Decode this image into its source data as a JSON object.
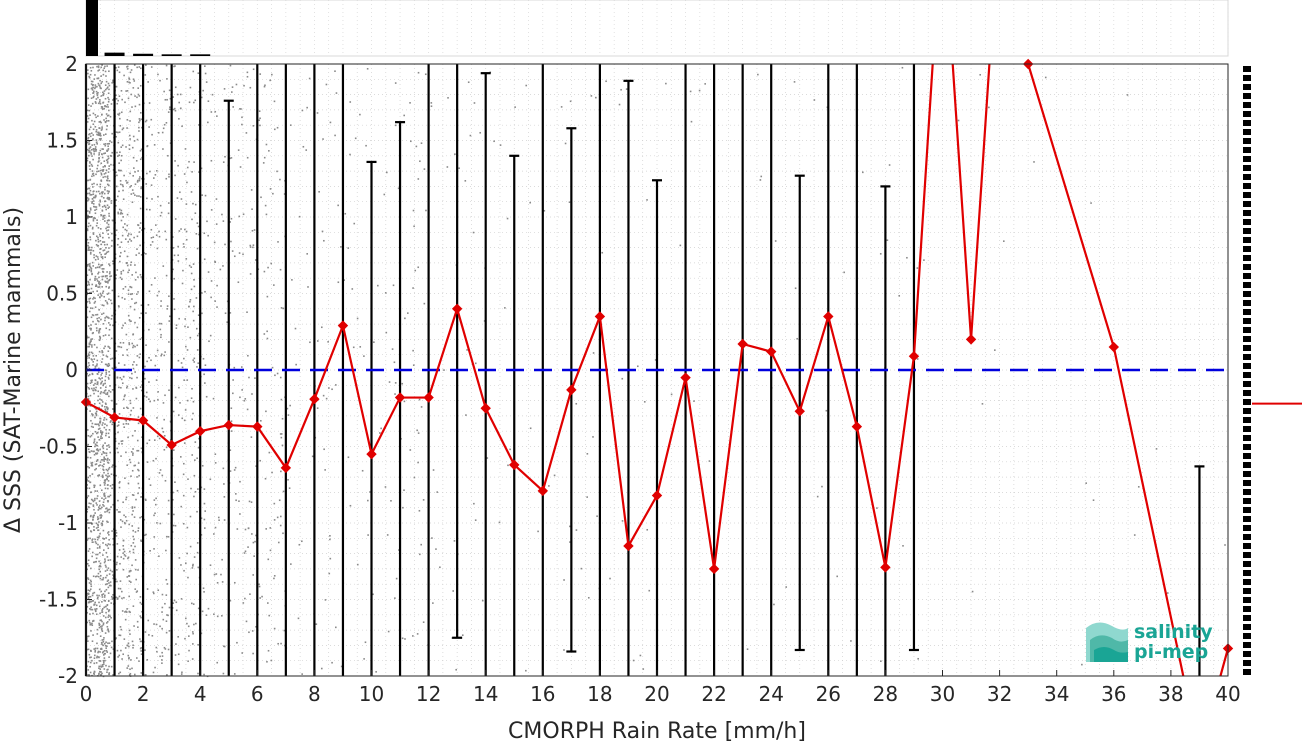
{
  "chart_data": {
    "type": "line",
    "xlabel": "CMORPH Rain Rate [mm/h]",
    "ylabel": "Δ SSS (SAT-Marine mammals)",
    "xlim": [
      0,
      40
    ],
    "ylim": [
      -2,
      2
    ],
    "xticks": [
      "0",
      "2",
      "4",
      "6",
      "8",
      "10",
      "12",
      "14",
      "16",
      "18",
      "20",
      "22",
      "24",
      "26",
      "28",
      "30",
      "32",
      "34",
      "36",
      "38",
      "40"
    ],
    "yticks": [
      "2",
      "1.5",
      "1",
      "0.5",
      "0",
      "-0.5",
      "-1",
      "-1.5",
      "-2"
    ],
    "grid": true,
    "reference_line": {
      "y": 0,
      "style": "dashed",
      "color": "#0000dd"
    },
    "series": [
      {
        "style": "line-diamond",
        "color": "#e00000",
        "x": [
          0,
          1,
          2,
          3,
          4,
          5,
          6,
          7,
          8,
          9,
          10,
          11,
          12,
          13,
          14,
          15,
          16,
          17,
          18,
          19,
          20,
          21,
          22,
          23,
          24,
          25,
          26,
          27,
          28,
          29,
          30,
          31,
          32,
          33,
          36,
          39,
          40
        ],
        "y": [
          -0.21,
          -0.31,
          -0.33,
          -0.49,
          -0.4,
          -0.36,
          -0.37,
          -0.64,
          -0.19,
          0.29,
          -0.55,
          -0.18,
          -0.18,
          0.4,
          -0.25,
          -0.62,
          -0.79,
          -0.13,
          0.35,
          -1.15,
          -0.82,
          -0.05,
          -1.3,
          0.17,
          0.12,
          -0.27,
          0.35,
          -0.37,
          -1.29,
          0.09,
          3.0,
          0.2,
          3.0,
          2.0,
          0.15,
          -2.5,
          -1.82
        ]
      }
    ],
    "error_bars": [
      {
        "x": 0,
        "low": -2,
        "high": 2
      },
      {
        "x": 1,
        "low": -2,
        "high": 2
      },
      {
        "x": 2,
        "low": -2,
        "high": 2
      },
      {
        "x": 3,
        "low": -2,
        "high": 2
      },
      {
        "x": 4,
        "low": -2,
        "high": 2
      },
      {
        "x": 5,
        "low": -2,
        "high": 1.76
      },
      {
        "x": 6,
        "low": -2,
        "high": 2
      },
      {
        "x": 7,
        "low": -2,
        "high": 2
      },
      {
        "x": 8,
        "low": -2,
        "high": 2
      },
      {
        "x": 9,
        "low": -2,
        "high": 2
      },
      {
        "x": 10,
        "low": -2,
        "high": 1.36
      },
      {
        "x": 11,
        "low": -2,
        "high": 1.62
      },
      {
        "x": 12,
        "low": -2,
        "high": 2
      },
      {
        "x": 13,
        "low": -1.75,
        "high": 2
      },
      {
        "x": 14,
        "low": -2,
        "high": 1.94
      },
      {
        "x": 15,
        "low": -2,
        "high": 1.4
      },
      {
        "x": 16,
        "low": -2,
        "high": 2
      },
      {
        "x": 17,
        "low": -1.84,
        "high": 1.58
      },
      {
        "x": 18,
        "low": -2,
        "high": 2
      },
      {
        "x": 19,
        "low": -2,
        "high": 1.89
      },
      {
        "x": 20,
        "low": -2,
        "high": 1.24
      },
      {
        "x": 21,
        "low": -2,
        "high": 2
      },
      {
        "x": 22,
        "low": -2,
        "high": 2
      },
      {
        "x": 23,
        "low": -2,
        "high": 2
      },
      {
        "x": 24,
        "low": -2,
        "high": 2
      },
      {
        "x": 25,
        "low": -1.83,
        "high": 1.27
      },
      {
        "x": 26,
        "low": -2,
        "high": 2
      },
      {
        "x": 27,
        "low": -2,
        "high": 2
      },
      {
        "x": 28,
        "low": -2,
        "high": 1.2
      },
      {
        "x": 29,
        "low": -1.83,
        "high": 2
      },
      {
        "x": 39,
        "low": -2,
        "high": -0.63
      }
    ],
    "top_histogram": {
      "x": [
        0,
        1,
        2,
        3,
        4
      ],
      "heights": [
        1.0,
        0.06,
        0.04,
        0.03,
        0.03
      ]
    },
    "right_histogram_marker_y": -0.22,
    "logo": [
      "salinity",
      "pi-mep"
    ]
  }
}
